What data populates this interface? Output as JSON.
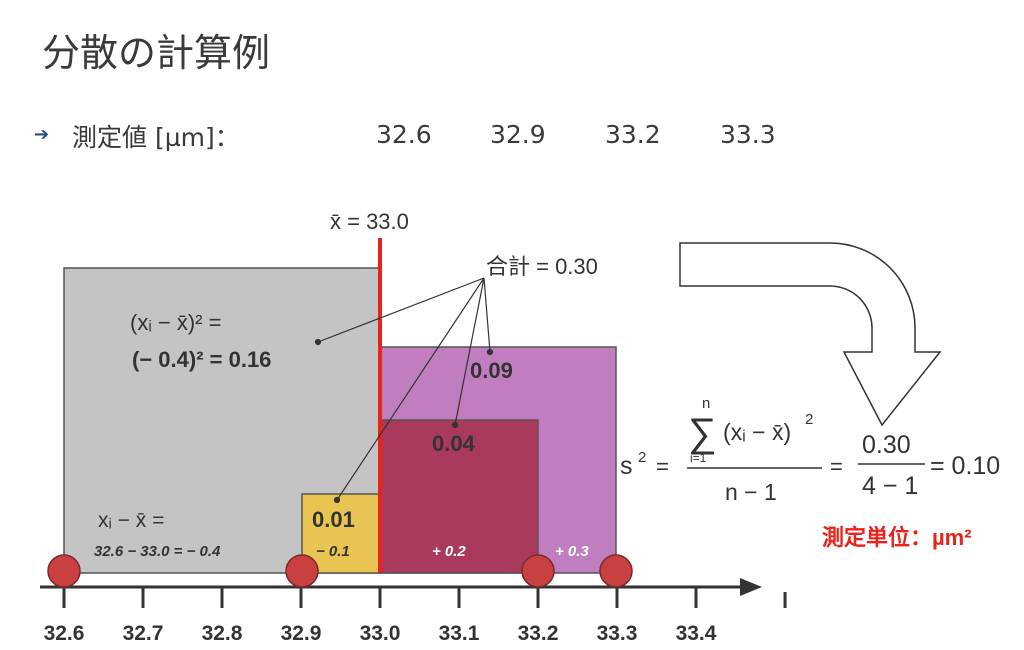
{
  "title": "分散の計算例",
  "measurement_label": "測定値 [µm]：",
  "measurements": [
    "32.6",
    "32.9",
    "33.2",
    "33.3"
  ],
  "mean_label": "x̄ = 33.0",
  "sum_label": "合計 = 0.30",
  "squared_dev_formula": "(xᵢ − x̄)² =",
  "squared_dev_example": "(− 0.4)² = 0.16",
  "deviation_formula": "xᵢ − x̄ =",
  "deviation_example": "32.6 − 33.0 = − 0.4",
  "squares": [
    {
      "value": "0.09",
      "color": "#c07ec0"
    },
    {
      "value": "0.04",
      "color": "#a93a5c"
    },
    {
      "value": "0.01",
      "color": "#e8c452"
    },
    {
      "value": "0.16",
      "color": "#c4c4c4"
    }
  ],
  "deviations": [
    "− 0.1",
    "+ 0.2",
    "+ 0.3"
  ],
  "axis_ticks": [
    "32.6",
    "32.7",
    "32.8",
    "32.9",
    "33.0",
    "33.1",
    "33.2",
    "33.3",
    "33.4"
  ],
  "axis_name": "l",
  "formula": {
    "lhs": "s",
    "lhs_exp": "2",
    "sum_top": "n",
    "sum_bottom": "i=1",
    "sum_sign": "∑",
    "numerator": "(xᵢ − x̄)",
    "numerator_exp": "2",
    "denominator": "n − 1",
    "eq": "=",
    "frac_num": "0.30",
    "frac_den": "4 − 1",
    "result": "= 0.10"
  },
  "unit_note": "測定単位：µm²",
  "colors": {
    "mean_line": "#e8231b",
    "point": "#c94040",
    "note": "#e8231b",
    "axis": "#333333"
  }
}
